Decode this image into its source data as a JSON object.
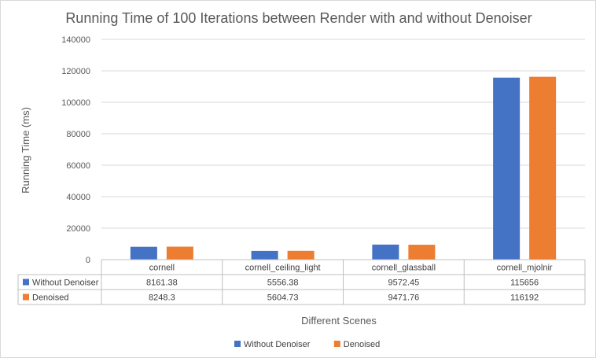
{
  "chart_data": {
    "type": "bar",
    "title": "Running Time of 100 Iterations between Render with and without Denoiser",
    "xlabel": "Different Scenes",
    "ylabel": "Running Time (ms)",
    "ylim": [
      0,
      140000
    ],
    "yticks": [
      0,
      20000,
      40000,
      60000,
      80000,
      100000,
      120000,
      140000
    ],
    "ytick_labels": [
      "0",
      "20000",
      "40000",
      "60000",
      "80000",
      "100000",
      "120000",
      "140000"
    ],
    "grid": true,
    "legend_position": "bottom",
    "data_table": true,
    "categories": [
      "cornell",
      "cornell_ceiling_light",
      "cornell_glassball",
      "cornell_mjolnir"
    ],
    "series": [
      {
        "name": "Without Denoiser",
        "color": "#4472c4",
        "values": [
          8161.38,
          5556.38,
          9572.45,
          115656
        ],
        "value_labels": [
          "8161.38",
          "5556.38",
          "9572.45",
          "115656"
        ]
      },
      {
        "name": "Denoised",
        "color": "#ed7d31",
        "values": [
          8248.3,
          5604.73,
          9471.76,
          116192
        ],
        "value_labels": [
          "8248.3",
          "5604.73",
          "9471.76",
          "116192"
        ]
      }
    ]
  }
}
